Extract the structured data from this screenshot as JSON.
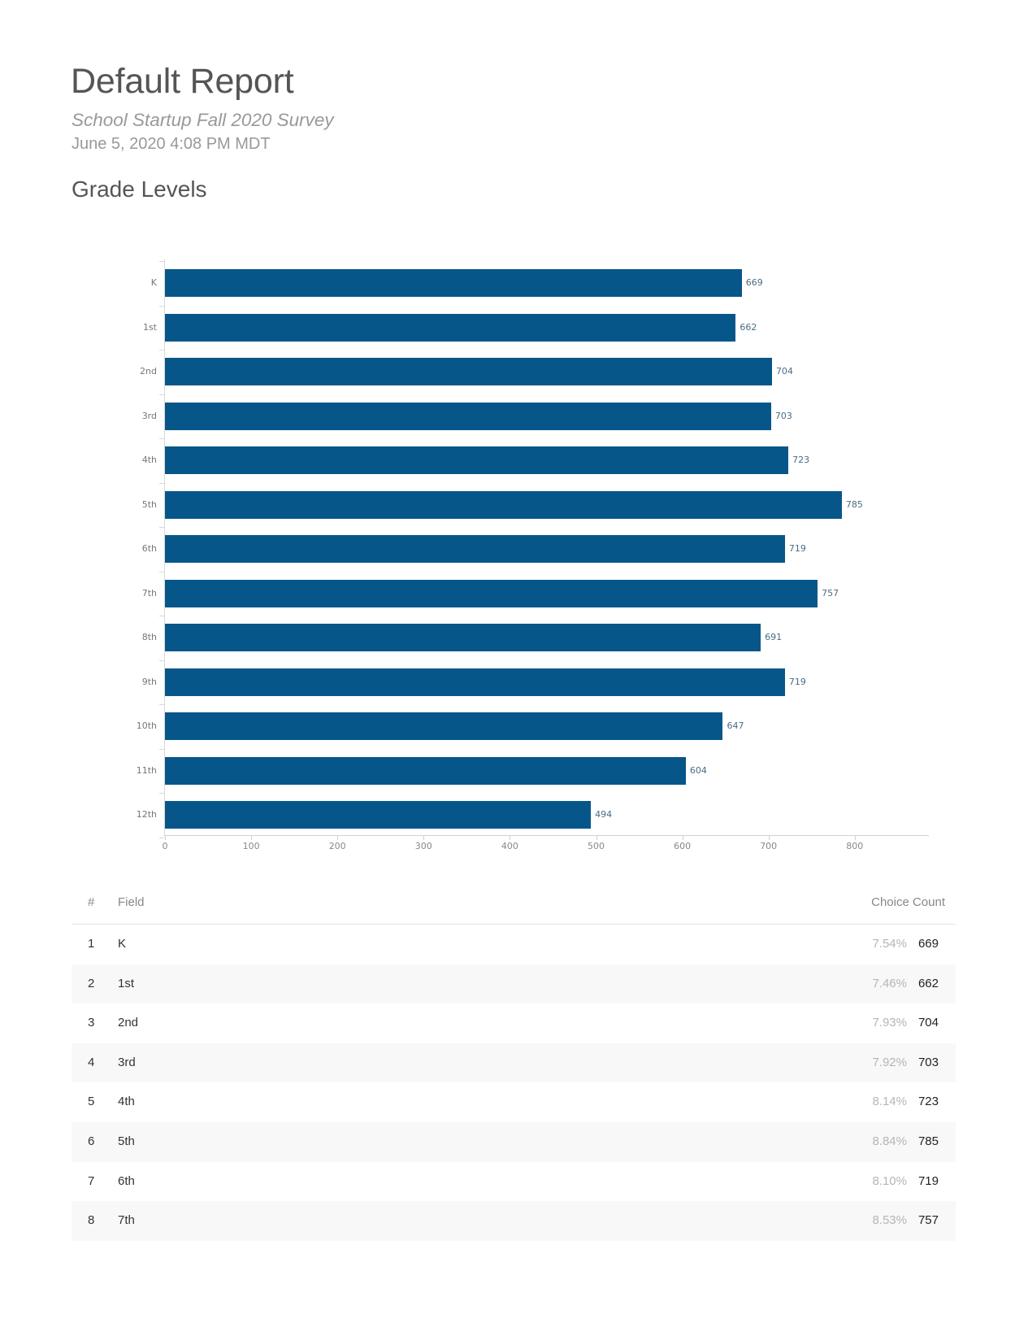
{
  "header": {
    "title": "Default Report",
    "subtitle": "School Startup Fall 2020 Survey",
    "date": "June 5, 2020 4:08 PM MDT"
  },
  "section": {
    "title": "Grade Levels"
  },
  "colors": {
    "bar": "#07568a",
    "value_label": "#4a6c84",
    "row_alt": "#f8f8f8"
  },
  "chart_data": {
    "type": "bar",
    "orientation": "horizontal",
    "title": "Grade Levels",
    "xlabel": "",
    "ylabel": "",
    "categories": [
      "K",
      "1st",
      "2nd",
      "3rd",
      "4th",
      "5th",
      "6th",
      "7th",
      "8th",
      "9th",
      "10th",
      "11th",
      "12th"
    ],
    "values": [
      669,
      662,
      704,
      703,
      723,
      785,
      719,
      757,
      691,
      719,
      647,
      604,
      494
    ],
    "xlim": [
      0,
      885
    ],
    "xticks": [
      "0",
      "100",
      "200",
      "300",
      "400",
      "500",
      "600",
      "700",
      "800"
    ],
    "data_labels": true,
    "grid": false,
    "legend": null
  },
  "table": {
    "headers": {
      "num": "#",
      "field": "Field",
      "count": "Choice Count"
    },
    "rows": [
      {
        "num": "1",
        "field": "K",
        "pct": "7.54%",
        "count": "669"
      },
      {
        "num": "2",
        "field": "1st",
        "pct": "7.46%",
        "count": "662"
      },
      {
        "num": "3",
        "field": "2nd",
        "pct": "7.93%",
        "count": "704"
      },
      {
        "num": "4",
        "field": "3rd",
        "pct": "7.92%",
        "count": "703"
      },
      {
        "num": "5",
        "field": "4th",
        "pct": "8.14%",
        "count": "723"
      },
      {
        "num": "6",
        "field": "5th",
        "pct": "8.84%",
        "count": "785"
      },
      {
        "num": "7",
        "field": "6th",
        "pct": "8.10%",
        "count": "719"
      },
      {
        "num": "8",
        "field": "7th",
        "pct": "8.53%",
        "count": "757"
      }
    ]
  }
}
